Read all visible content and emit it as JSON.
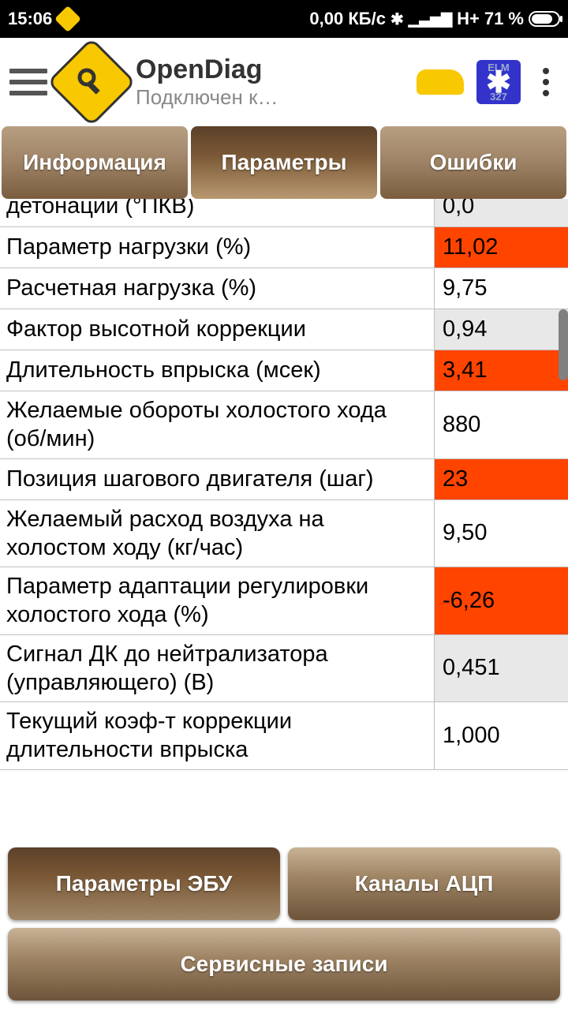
{
  "status_bar": {
    "time": "15:06",
    "data_rate": "0,00 КБ/с",
    "network_type": "H+",
    "battery_pct": "71 %"
  },
  "header": {
    "app_title": "OpenDiag",
    "app_subtitle": "Подключен к…"
  },
  "tabs": {
    "info": "Информация",
    "params": "Параметры",
    "errors": "Ошибки"
  },
  "parameters": [
    {
      "label": "детонации (°ПКВ)",
      "value": "0,0",
      "bg": "gray",
      "partial_top": true
    },
    {
      "label": "Параметр нагрузки (%)",
      "value": "11,02",
      "bg": "orange"
    },
    {
      "label": "Расчетная нагрузка (%)",
      "value": "9,75",
      "bg": "white"
    },
    {
      "label": "Фактор высотной коррекции",
      "value": "0,94",
      "bg": "gray"
    },
    {
      "label": "Длительность впрыска (мсек)",
      "value": "3,41",
      "bg": "orange"
    },
    {
      "label": "Желаемые обороты холостого хода (об/мин)",
      "value": "880",
      "bg": "white"
    },
    {
      "label": "Позиция шагового двигателя (шаг)",
      "value": "23",
      "bg": "orange"
    },
    {
      "label": "Желаемый расход воздуха на холостом ходу (кг/час)",
      "value": "9,50",
      "bg": "white"
    },
    {
      "label": "Параметр адаптации регулировки холостого хода (%)",
      "value": "-6,26",
      "bg": "orange"
    },
    {
      "label": "Сигнал ДК до нейтрализатора (управляющего) (В)",
      "value": "0,451",
      "bg": "gray"
    },
    {
      "label": "Текущий коэф-т коррекции длительности впрыска",
      "value": "1,000",
      "bg": "white"
    }
  ],
  "bottom_buttons": {
    "ecu_params": "Параметры ЭБУ",
    "adc_channels": "Каналы АЦП",
    "service_records": "Сервисные записи"
  },
  "colors": {
    "highlight_orange": "#ff4400",
    "gray_cell": "#e8e8e8",
    "tab_gradient_inactive": [
      "#b89f82",
      "#7a5d3f"
    ],
    "tab_gradient_active": [
      "#5c4028",
      "#b89870"
    ],
    "logo_yellow": "#f8c800"
  }
}
